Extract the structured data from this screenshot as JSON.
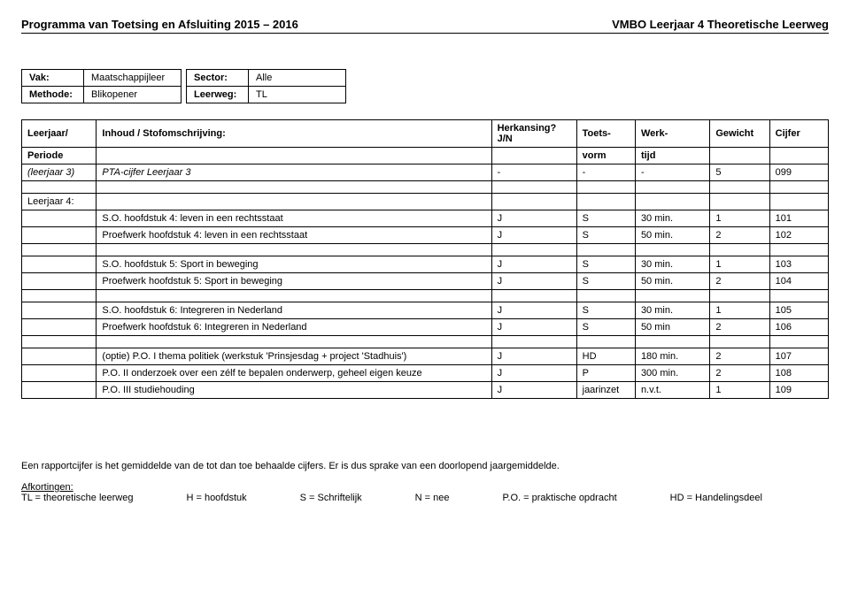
{
  "header": {
    "left": "Programma van Toetsing en Afsluiting 2015 – 2016",
    "right": "VMBO Leerjaar 4 Theoretische Leerweg"
  },
  "meta": {
    "vak_label": "Vak:",
    "vak_value": "Maatschappijleer",
    "sector_label": "Sector:",
    "sector_value": "Alle",
    "methode_label": "Methode:",
    "methode_value": "Blikopener",
    "leerweg_label": "Leerweg:",
    "leerweg_value": "TL"
  },
  "columns": {
    "c0a": "Leerjaar/",
    "c0b": "Periode",
    "c1": "Inhoud / Stofomschrijving:",
    "c2": "Herkansing? J/N",
    "c3a": "Toets-",
    "c3b": "vorm",
    "c4a": "Werk-",
    "c4b": "tijd",
    "c5": "Gewicht",
    "c6": "Cijfer"
  },
  "rows": [
    {
      "type": "data",
      "c0": "(leerjaar 3)",
      "c1": "PTA-cijfer Leerjaar 3",
      "c2": "-",
      "c3": "-",
      "c4": "-",
      "c5": "5",
      "c6": "099",
      "italic0": true,
      "italic1": true
    },
    {
      "type": "blank"
    },
    {
      "type": "data",
      "c0": "Leerjaar 4:",
      "c1": "",
      "c2": "",
      "c3": "",
      "c4": "",
      "c5": "",
      "c6": ""
    },
    {
      "type": "data",
      "c0": "",
      "c1": "S.O. hoofdstuk 4: leven in een rechtsstaat",
      "c2": "J",
      "c3": "S",
      "c4": "30 min.",
      "c5": "1",
      "c6": "101"
    },
    {
      "type": "data",
      "c0": "",
      "c1": "Proefwerk hoofdstuk 4: leven in een rechtsstaat",
      "c2": "J",
      "c3": "S",
      "c4": "50 min.",
      "c5": "2",
      "c6": "102"
    },
    {
      "type": "blank"
    },
    {
      "type": "data",
      "c0": "",
      "c1": "S.O. hoofdstuk 5: Sport in beweging",
      "c2": "J",
      "c3": "S",
      "c4": "30 min.",
      "c5": "1",
      "c6": "103"
    },
    {
      "type": "data",
      "c0": "",
      "c1": "Proefwerk hoofdstuk 5: Sport in beweging",
      "c2": "J",
      "c3": "S",
      "c4": "50 min.",
      "c5": "2",
      "c6": "104"
    },
    {
      "type": "blank"
    },
    {
      "type": "data",
      "c0": "",
      "c1": "S.O. hoofdstuk 6: Integreren in Nederland",
      "c2": "J",
      "c3": "S",
      "c4": "30 min.",
      "c5": "1",
      "c6": "105"
    },
    {
      "type": "data",
      "c0": "",
      "c1": "Proefwerk hoofdstuk 6: Integreren in Nederland",
      "c2": "J",
      "c3": "S",
      "c4": "50 min",
      "c5": "2",
      "c6": "106"
    },
    {
      "type": "blank"
    },
    {
      "type": "data",
      "c0": "",
      "c1": "(optie) P.O. I  thema politiek (werkstuk 'Prinsjesdag + project 'Stadhuis')",
      "c2": "J",
      "c3": "HD",
      "c4": "180 min.",
      "c5": "2",
      "c6": "107"
    },
    {
      "type": "data",
      "c0": "",
      "c1": "P.O. II onderzoek over een zélf te bepalen onderwerp, geheel eigen keuze",
      "c2": "J",
      "c3": "P",
      "c4": "300 min.",
      "c5": "2",
      "c6": "108"
    },
    {
      "type": "data",
      "c0": "",
      "c1": "P.O. III studiehouding",
      "c2": "J",
      "c3": "jaarinzet",
      "c4": "n.v.t.",
      "c5": "1",
      "c6": "109"
    }
  ],
  "footer": {
    "note": "Een rapportcijfer is het gemiddelde van de tot dan toe behaalde cijfers. Er is dus sprake van een doorlopend jaargemiddelde.",
    "afk_title": "Afkortingen:",
    "afk": [
      "TL = theoretische leerweg",
      "H = hoofdstuk",
      "S = Schriftelijk",
      "N = nee",
      "P.O. = praktische opdracht",
      "HD = Handelingsdeel"
    ]
  }
}
